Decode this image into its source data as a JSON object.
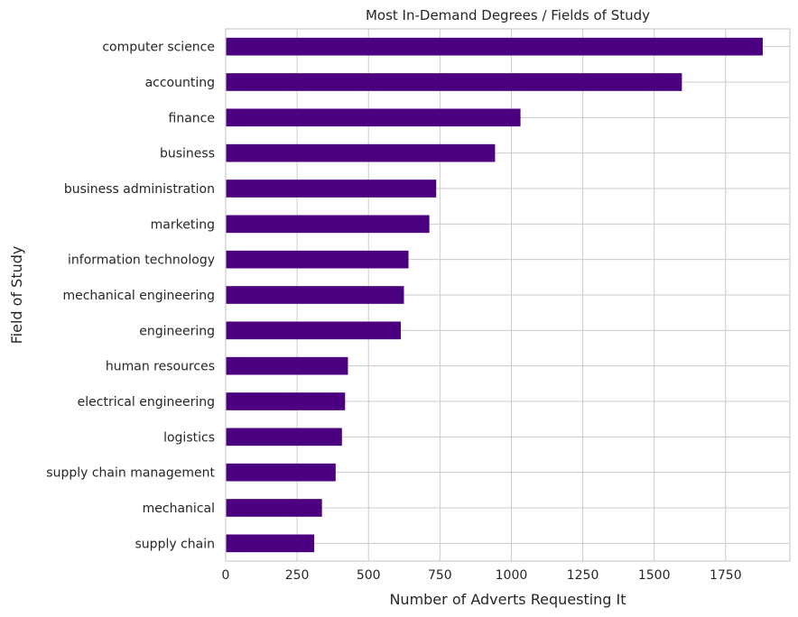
{
  "chart_data": {
    "type": "bar",
    "orientation": "horizontal",
    "title": "Most In-Demand Degrees / Fields of Study",
    "xlabel": "Number of Adverts Requesting It",
    "ylabel": "Field of Study",
    "categories": [
      "computer science",
      "accounting",
      "finance",
      "business",
      "business administration",
      "marketing",
      "information technology",
      "mechanical engineering",
      "engineering",
      "human resources",
      "electrical engineering",
      "logistics",
      "supply chain management",
      "mechanical",
      "supply chain"
    ],
    "values": [
      1880,
      1597,
      1032,
      943,
      737,
      713,
      640,
      624,
      613,
      428,
      418,
      407,
      385,
      337,
      310
    ],
    "xlim": [
      0,
      1975
    ],
    "xticks": [
      0,
      250,
      500,
      750,
      1000,
      1250,
      1500,
      1750
    ],
    "grid": true,
    "bar_color": "#4b0080"
  }
}
